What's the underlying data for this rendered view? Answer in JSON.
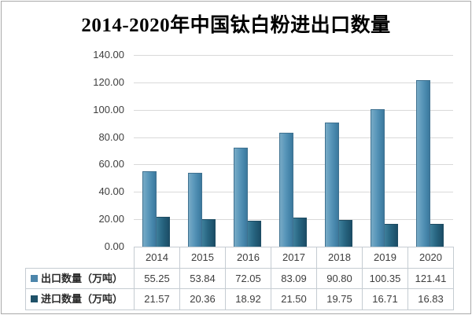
{
  "title": "2014-2020年中国钛白粉进出口数量",
  "chart_data": {
    "type": "bar",
    "title": "2014-2020年中国钛白粉进出口数量",
    "categories": [
      "2014",
      "2015",
      "2016",
      "2017",
      "2018",
      "2019",
      "2020"
    ],
    "series": [
      {
        "name": "出口数量（万吨）",
        "values": [
          55.25,
          53.84,
          72.05,
          83.09,
          90.8,
          100.35,
          121.41
        ],
        "color": "#4d86ab",
        "legend_color": "#4d86ab"
      },
      {
        "name": "进口数量（万吨）",
        "values": [
          21.57,
          20.36,
          18.92,
          21.5,
          19.75,
          16.71,
          16.83
        ],
        "color": "#1f5168",
        "legend_color": "#1f5168"
      }
    ],
    "xlabel": "",
    "ylabel": "",
    "ylim": [
      0,
      140
    ],
    "y_tick_step": 20,
    "y_ticks": [
      "140.00",
      "120.00",
      "100.00",
      "80.00",
      "60.00",
      "40.00",
      "20.00",
      "0.00"
    ],
    "grid": true,
    "legend_position": "data-table-left",
    "data_table_shown": true
  }
}
